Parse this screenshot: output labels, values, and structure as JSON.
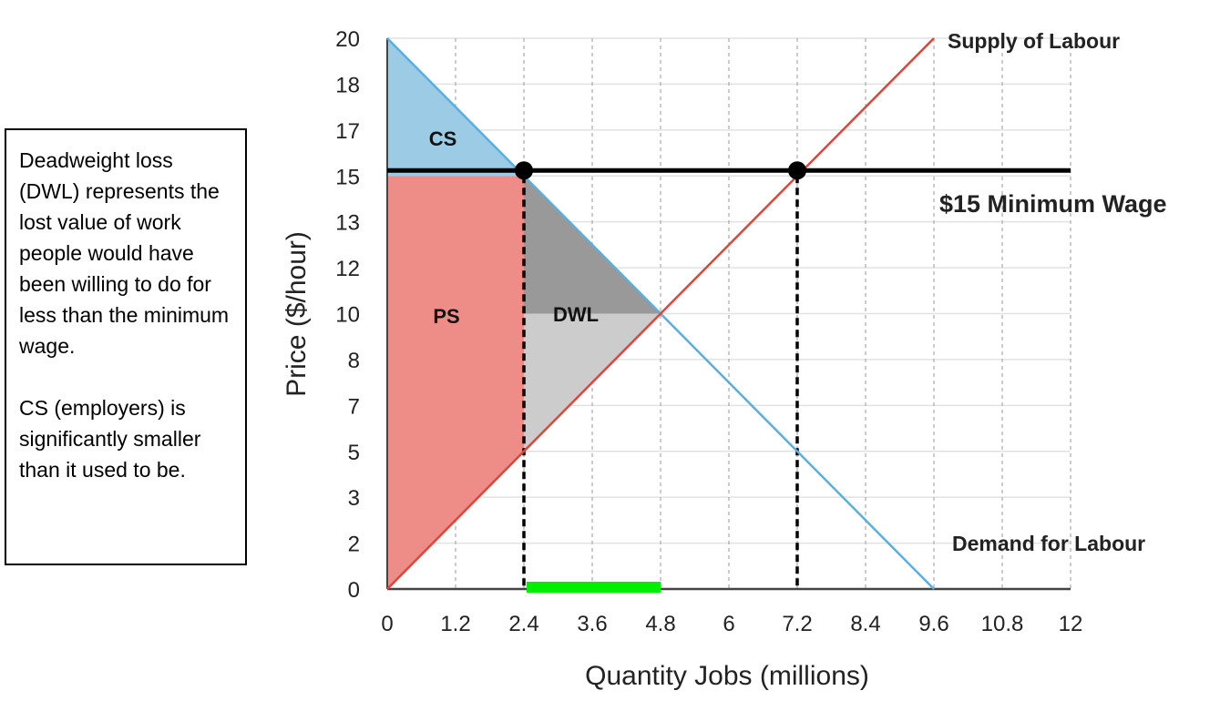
{
  "note": "Deadweight loss (DWL) represents the lost value of work people would have been willing to do for less than the minimum wage.\n\nCS (employers) is significantly smaller than it used to be.",
  "chart_data": {
    "type": "line",
    "xlabel": "Quantity Jobs (millions)",
    "ylabel": "Price ($/hour)",
    "x_ticks": [
      "0",
      "1.2",
      "2.4",
      "3.6",
      "4.8",
      "6",
      "7.2",
      "8.4",
      "9.6",
      "10.8",
      "12"
    ],
    "y_ticks": [
      "0",
      "2",
      "3",
      "5",
      "7",
      "8",
      "10",
      "12",
      "13",
      "15",
      "17",
      "18",
      "20"
    ],
    "xlim": [
      0,
      12
    ],
    "ylim": [
      0,
      20
    ],
    "grid": true,
    "series": [
      {
        "name": "Demand for Labour",
        "color": "#5aaee0",
        "x": [
          0,
          2.4,
          4.8,
          7.2,
          9.6
        ],
        "y": [
          20,
          15,
          10,
          5,
          0
        ]
      },
      {
        "name": "Supply of Labour",
        "color": "#e0453a",
        "x": [
          0,
          2.4,
          4.8,
          7.2,
          9.6
        ],
        "y": [
          0,
          5,
          10,
          15,
          20
        ]
      }
    ],
    "min_wage": {
      "label": "$15 Minimum Wage",
      "value": 15,
      "color": "#000000"
    },
    "points": [
      {
        "x": 2.4,
        "y": 15
      },
      {
        "x": 7.2,
        "y": 15
      }
    ],
    "dashed_verticals": [
      2.4,
      7.2
    ],
    "unemployment_bar": {
      "from": 2.4,
      "to": 4.8,
      "color": "#00ee00"
    },
    "areas": [
      {
        "label": "CS",
        "color": "#9ccbe6",
        "polygon": [
          [
            0,
            20
          ],
          [
            2.4,
            15
          ],
          [
            0,
            15
          ]
        ]
      },
      {
        "label": "PS",
        "color": "#ee8d88",
        "polygon": [
          [
            0,
            0
          ],
          [
            0,
            15
          ],
          [
            2.4,
            15
          ],
          [
            2.4,
            5
          ]
        ]
      },
      {
        "label": "DWL",
        "color": "#999999",
        "polygon": [
          [
            2.4,
            15
          ],
          [
            4.8,
            10
          ],
          [
            2.4,
            10
          ]
        ]
      },
      {
        "label": "",
        "color": "#cccccc",
        "polygon": [
          [
            2.4,
            10
          ],
          [
            4.8,
            10
          ],
          [
            2.4,
            5
          ]
        ]
      }
    ]
  }
}
